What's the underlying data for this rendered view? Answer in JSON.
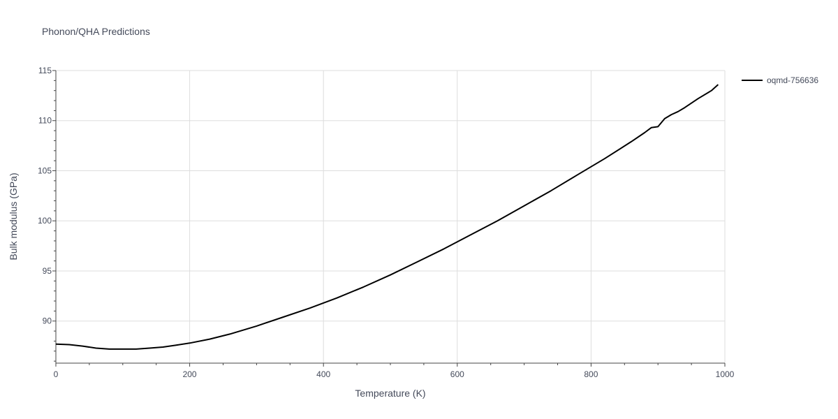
{
  "chart_data": {
    "type": "line",
    "title": "Phonon/QHA Predictions",
    "xlabel": "Temperature (K)",
    "ylabel": "Bulk modulus (GPa)",
    "xlim": [
      0,
      1000
    ],
    "ylim": [
      85.8,
      115
    ],
    "xticks": [
      0,
      200,
      400,
      600,
      800,
      1000
    ],
    "xtick_labels": [
      "0",
      "200",
      "400",
      "600",
      "800",
      "1000"
    ],
    "yticks": [
      90,
      95,
      100,
      105,
      110,
      115
    ],
    "ytick_labels": [
      "90",
      "95",
      "100",
      "105",
      "110",
      "115"
    ],
    "grid": true,
    "legend_position": "top-right",
    "series": [
      {
        "name": "oqmd-756636",
        "color": "#000000",
        "x": [
          0,
          20,
          40,
          60,
          80,
          100,
          120,
          140,
          160,
          180,
          200,
          230,
          260,
          300,
          340,
          380,
          420,
          460,
          500,
          540,
          580,
          620,
          660,
          700,
          740,
          780,
          820,
          860,
          880,
          890,
          900,
          910,
          920,
          930,
          940,
          960,
          980,
          990
        ],
        "y": [
          87.7,
          87.65,
          87.5,
          87.3,
          87.2,
          87.2,
          87.2,
          87.3,
          87.4,
          87.6,
          87.8,
          88.2,
          88.7,
          89.5,
          90.4,
          91.3,
          92.3,
          93.4,
          94.6,
          95.9,
          97.2,
          98.6,
          100.0,
          101.5,
          103.0,
          104.6,
          106.2,
          107.9,
          108.8,
          109.3,
          109.4,
          110.2,
          110.6,
          110.9,
          111.3,
          112.2,
          113.0,
          113.6
        ]
      }
    ]
  }
}
